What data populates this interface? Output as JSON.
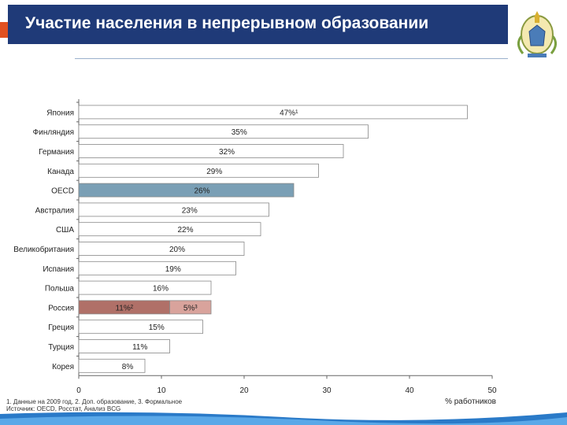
{
  "header": {
    "title": "Участие населения в непрерывном образовании"
  },
  "footer": {
    "note": "1. Данные на 2009 год, 2. Доп. образование, 3. Формальное",
    "source": "Источник: OECD, Росстат, Анализ BCG"
  },
  "colors": {
    "header_bg": "#1f3a78",
    "bar": "#ffffff",
    "bar_highlight": "#7a9fb5",
    "russia_part1": "#b07068",
    "russia_part2": "#d9a39c"
  },
  "chart_data": {
    "type": "bar",
    "orientation": "horizontal",
    "categories": [
      "Япония",
      "Финляндия",
      "Германия",
      "Канада",
      "OECD",
      "Австралия",
      "США",
      "Великобритания",
      "Испания",
      "Польша",
      "Россия",
      "Греция",
      "Турция",
      "Корея"
    ],
    "values": [
      47,
      35,
      32,
      29,
      26,
      23,
      22,
      20,
      19,
      16,
      16,
      15,
      11,
      8
    ],
    "labels": [
      "47%¹",
      "35%",
      "32%",
      "29%",
      "26%",
      "23%",
      "22%",
      "20%",
      "19%",
      "16%",
      "",
      "15%",
      "11%",
      "8%"
    ],
    "segments": {
      "Россия": [
        {
          "value": 11,
          "label": "11%²"
        },
        {
          "value": 5,
          "label": "5%³"
        }
      ]
    },
    "highlight": [
      "OECD"
    ],
    "xticks": [
      0,
      10,
      20,
      30,
      40,
      50
    ],
    "xtick_labels": [
      "0",
      "10",
      "20",
      "30",
      "40",
      "50"
    ],
    "xlim": [
      0,
      50
    ],
    "xlabel": "% работников",
    "title": ""
  }
}
